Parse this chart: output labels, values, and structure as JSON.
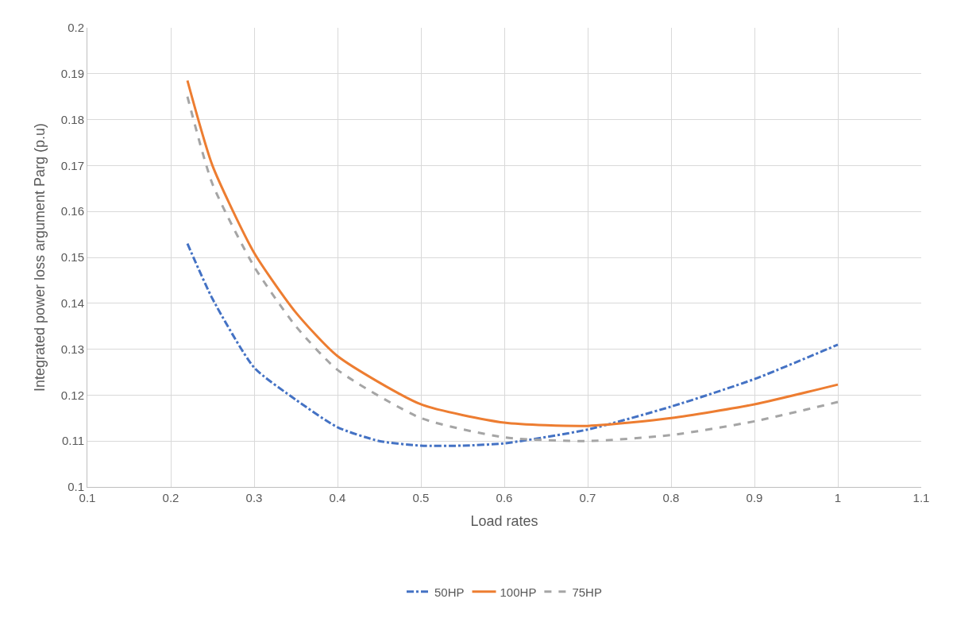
{
  "chart_data": {
    "type": "line",
    "xlabel": "Load rates",
    "ylabel": "Integrated power loss argument Parg (p.u)",
    "x": [
      0.22,
      0.25,
      0.3,
      0.35,
      0.4,
      0.45,
      0.5,
      0.55,
      0.6,
      0.7,
      0.8,
      0.9,
      1.0
    ],
    "series": [
      {
        "name": "50HP",
        "color": "#4472c4",
        "line_style": "dashdot",
        "values": [
          0.153,
          0.141,
          0.126,
          0.119,
          0.113,
          0.11,
          0.109,
          0.109,
          0.1095,
          0.1125,
          0.1175,
          0.1235,
          0.131
        ]
      },
      {
        "name": "100HP",
        "color": "#ed7d31",
        "line_style": "solid",
        "values": [
          0.1885,
          0.17,
          0.151,
          0.138,
          0.1285,
          null,
          0.118,
          null,
          0.114,
          0.1133,
          0.115,
          0.118,
          0.1223
        ]
      },
      {
        "name": "75HP",
        "color": "#a5a5a5",
        "line_style": "dashed",
        "values": [
          0.185,
          0.166,
          0.148,
          0.135,
          0.1255,
          null,
          0.115,
          null,
          0.1108,
          0.11,
          0.1113,
          0.1143,
          0.1185
        ]
      }
    ],
    "xlim": [
      0.1,
      1.1
    ],
    "xticks": [
      0.1,
      0.2,
      0.3,
      0.4,
      0.5,
      0.6,
      0.7,
      0.8,
      0.9,
      1,
      1.1
    ],
    "ylim": [
      0.1,
      0.2
    ],
    "yticks": [
      0.1,
      0.11,
      0.12,
      0.13,
      0.14,
      0.15,
      0.16,
      0.17,
      0.18,
      0.19,
      0.2
    ],
    "grid": true,
    "legend": "bottom",
    "marker": "none"
  }
}
